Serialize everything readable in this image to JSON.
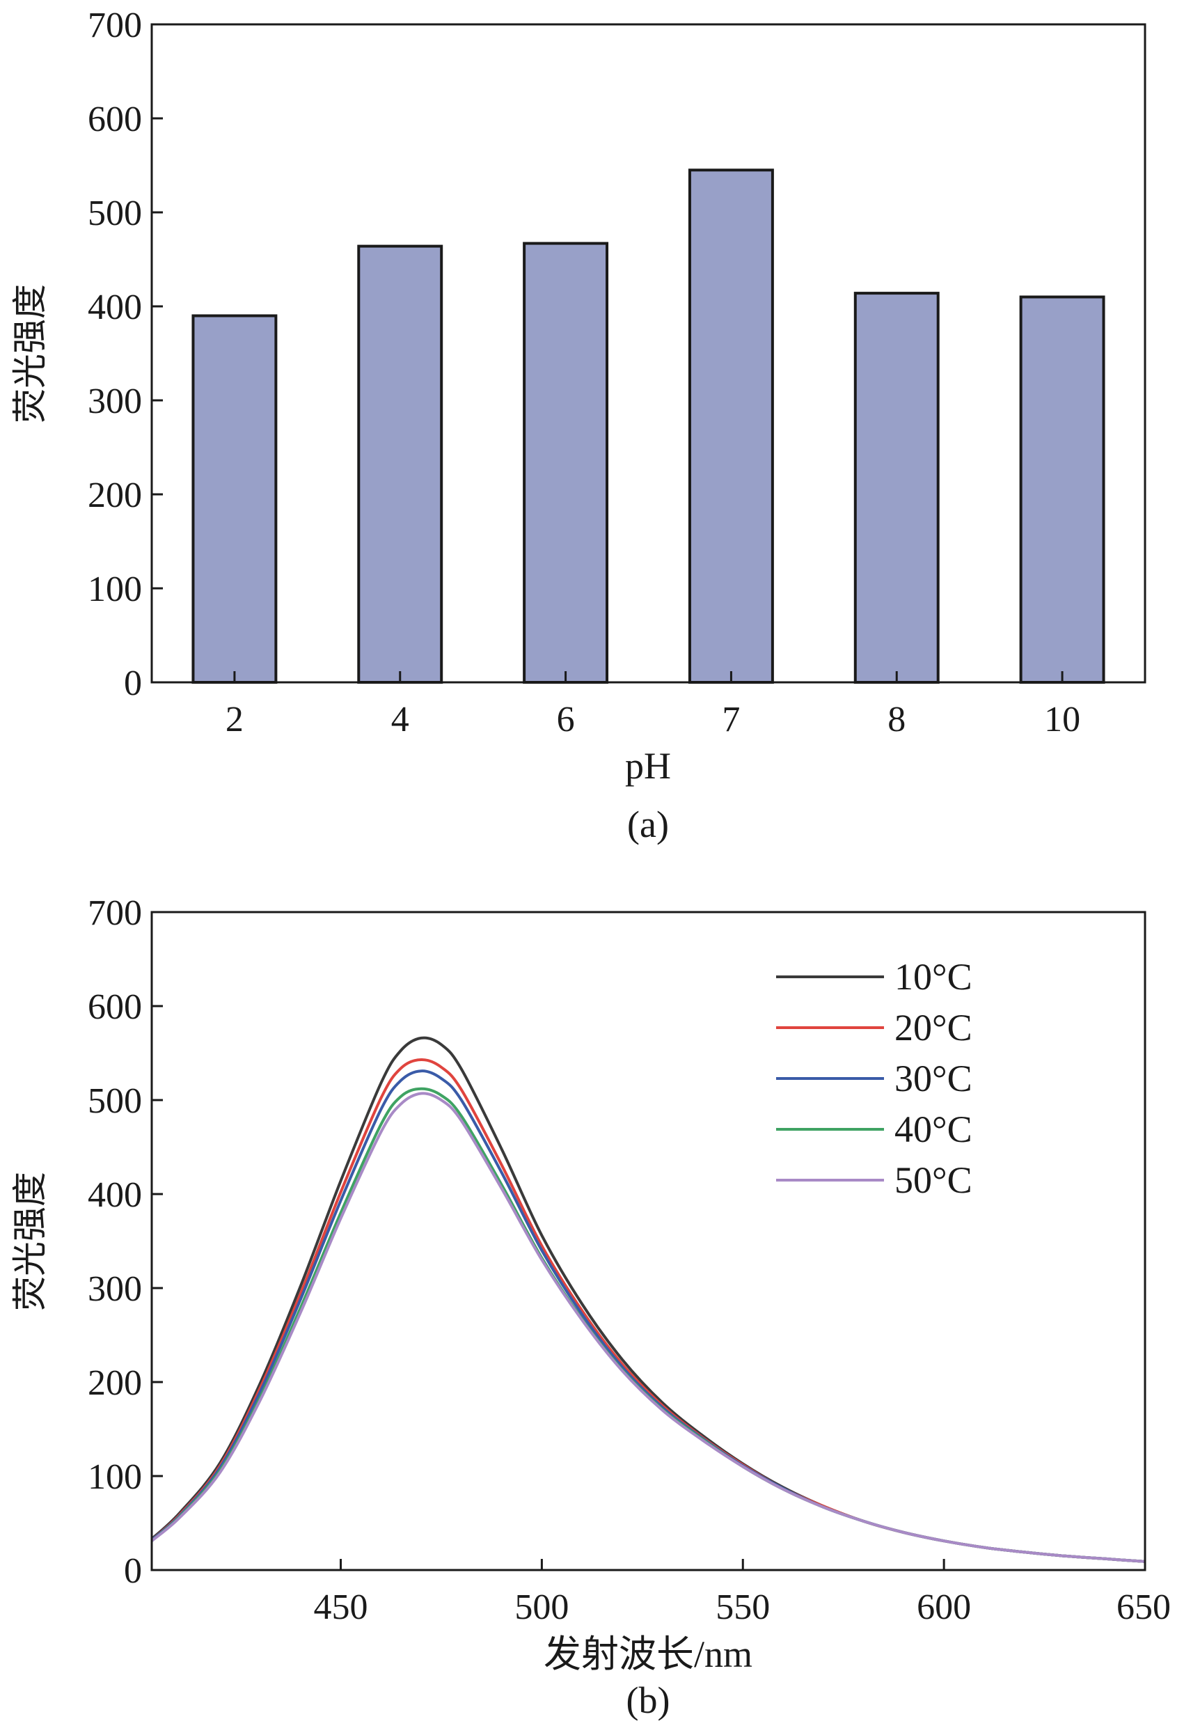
{
  "chart_data": [
    {
      "panel": "(a)",
      "type": "bar",
      "categories": [
        "2",
        "4",
        "6",
        "7",
        "8",
        "10"
      ],
      "values": [
        390,
        464,
        467,
        545,
        414,
        410
      ],
      "title": "",
      "xlabel": "pH",
      "ylabel": "荧光强度",
      "ylim": [
        0,
        700
      ],
      "yticks": [
        0,
        100,
        200,
        300,
        400,
        500,
        600,
        700
      ],
      "bar_color": "#98a0c8",
      "grid": false,
      "legend": "none"
    },
    {
      "panel": "(b)",
      "type": "line",
      "title": "",
      "xlabel": "发射波长/nm",
      "ylabel": "荧光强度",
      "xlim": [
        403,
        650
      ],
      "ylim": [
        0,
        700
      ],
      "xticks": [
        450,
        500,
        550,
        600,
        650
      ],
      "yticks": [
        0,
        100,
        200,
        300,
        400,
        500,
        600,
        700
      ],
      "x": [
        403,
        410,
        420,
        430,
        440,
        450,
        460,
        465,
        470,
        475,
        480,
        490,
        500,
        510,
        520,
        530,
        540,
        550,
        560,
        570,
        580,
        590,
        600,
        610,
        620,
        630,
        640,
        650
      ],
      "series": [
        {
          "name": "10°C",
          "color": "#3a3a3a",
          "values": [
            33,
            61,
            114,
            199,
            302,
            414,
            518,
            553,
            566,
            559,
            533,
            448,
            356,
            283,
            224,
            178,
            143,
            113,
            88,
            68,
            52,
            40,
            31,
            24,
            19,
            15,
            12,
            9
          ]
        },
        {
          "name": "20°C",
          "color": "#e0443e",
          "values": [
            32,
            59,
            111,
            194,
            294,
            402,
            502,
            534,
            543,
            535,
            511,
            431,
            345,
            276,
            219,
            175,
            141,
            112,
            87,
            68,
            52,
            40,
            31,
            24,
            19,
            15,
            12,
            9
          ]
        },
        {
          "name": "30°C",
          "color": "#3a5ba8",
          "values": [
            32,
            58,
            109,
            190,
            288,
            393,
            490,
            521,
            531,
            523,
            500,
            423,
            340,
            272,
            216,
            173,
            140,
            111,
            87,
            67,
            52,
            40,
            31,
            24,
            19,
            15,
            12,
            9
          ]
        },
        {
          "name": "40°C",
          "color": "#3fa363",
          "values": [
            31,
            57,
            106,
            184,
            279,
            380,
            474,
            504,
            512,
            505,
            483,
            410,
            332,
            267,
            213,
            171,
            139,
            110,
            86,
            67,
            52,
            40,
            31,
            24,
            19,
            15,
            12,
            9
          ]
        },
        {
          "name": "50°C",
          "color": "#a88ac6",
          "values": [
            31,
            56,
            104,
            181,
            274,
            374,
            466,
            496,
            507,
            500,
            478,
            406,
            330,
            266,
            212,
            170,
            138,
            110,
            86,
            67,
            52,
            40,
            31,
            24,
            19,
            15,
            12,
            9
          ]
        }
      ],
      "grid": false,
      "legend": "top-right"
    }
  ]
}
